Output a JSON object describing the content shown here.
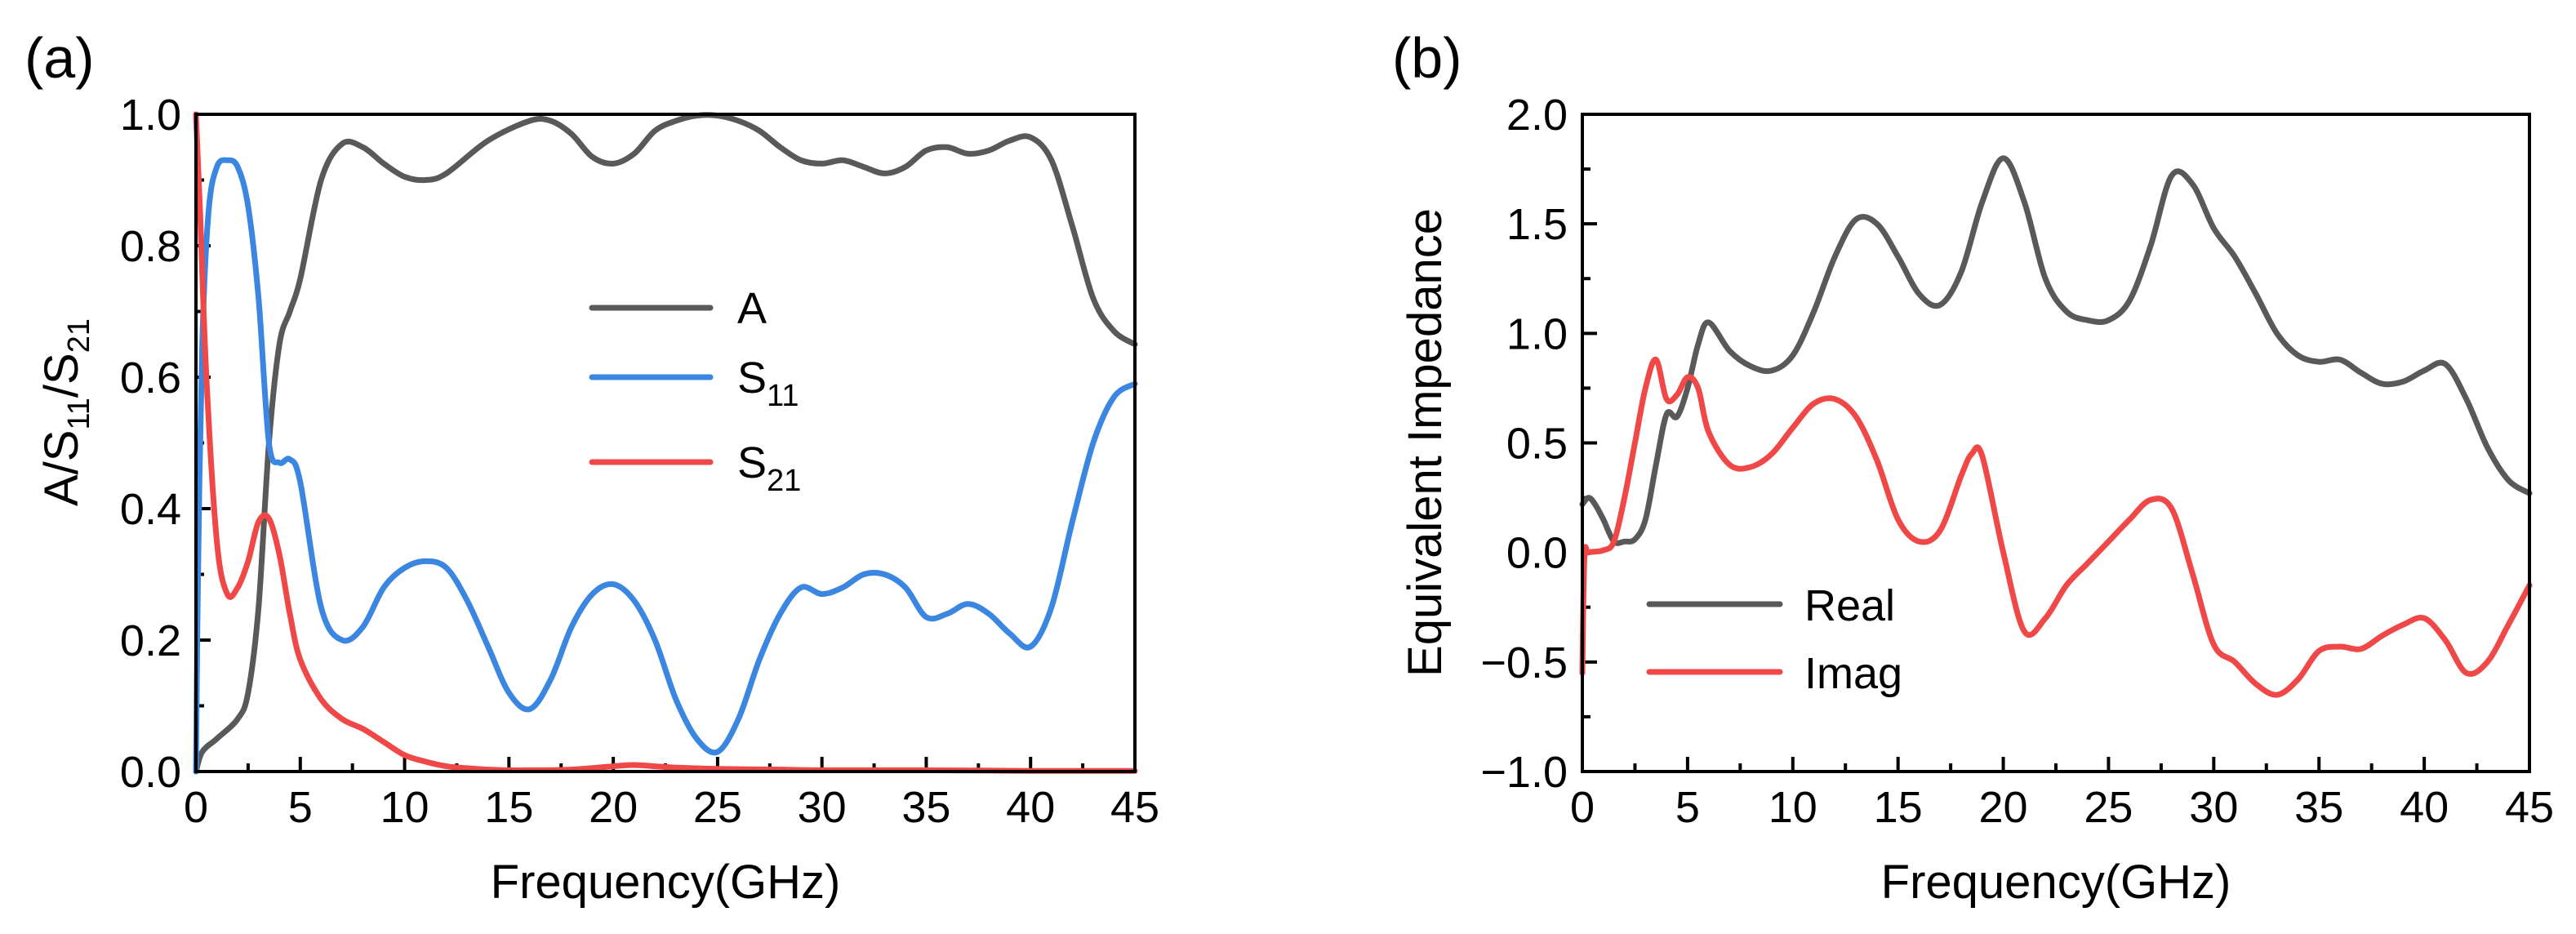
{
  "chart_data": [
    {
      "type": "line",
      "panel_label": "(a)",
      "xlabel": "Frequency(GHz)",
      "ylabel": "A/S11/S21",
      "xlim": [
        0,
        45
      ],
      "ylim": [
        0,
        1.0
      ],
      "xticks": [
        0,
        5,
        10,
        15,
        20,
        25,
        30,
        35,
        40,
        45
      ],
      "yticks": [
        0.0,
        0.2,
        0.4,
        0.6,
        0.8,
        1.0
      ],
      "x_tick_labels": [
        "0",
        "5",
        "10",
        "15",
        "20",
        "25",
        "30",
        "35",
        "40",
        "45"
      ],
      "y_tick_labels": [
        "0.0",
        "0.2",
        "0.4",
        "0.6",
        "0.8",
        "1.0"
      ],
      "legend_position": "center",
      "grid": false,
      "series": [
        {
          "name": "A",
          "legend_main": "A",
          "legend_sub": "",
          "color": "#595959",
          "x": [
            0,
            0.3,
            1,
            2,
            2.5,
            3,
            3.5,
            4,
            4.5,
            5,
            6,
            7,
            8,
            9,
            10,
            11,
            12,
            14,
            16,
            17,
            18,
            19,
            20,
            21,
            22,
            23,
            24,
            25,
            26,
            27,
            28,
            29,
            30,
            31,
            32,
            33,
            34,
            35,
            36,
            37,
            38,
            39,
            40,
            41,
            42,
            43,
            44,
            45
          ],
          "y": [
            0,
            0.03,
            0.05,
            0.08,
            0.12,
            0.25,
            0.5,
            0.65,
            0.7,
            0.75,
            0.9,
            0.955,
            0.95,
            0.925,
            0.905,
            0.9,
            0.91,
            0.96,
            0.99,
            0.99,
            0.97,
            0.935,
            0.925,
            0.94,
            0.975,
            0.99,
            0.998,
            0.998,
            0.99,
            0.975,
            0.95,
            0.93,
            0.925,
            0.93,
            0.92,
            0.91,
            0.92,
            0.945,
            0.95,
            0.94,
            0.945,
            0.96,
            0.965,
            0.93,
            0.83,
            0.72,
            0.67,
            0.65
          ]
        },
        {
          "name": "S11",
          "legend_main": "S",
          "legend_sub": "11",
          "color": "#3a86e0",
          "x": [
            0,
            0.1,
            0.3,
            0.6,
            1,
            1.5,
            2,
            2.5,
            3,
            3.5,
            4,
            4.5,
            5,
            6,
            7,
            8,
            9,
            10,
            11,
            12,
            13,
            14,
            15,
            16,
            17,
            18,
            19,
            20,
            21,
            22,
            23,
            24,
            25,
            26,
            27,
            28,
            29,
            30,
            31,
            32,
            33,
            34,
            35,
            36,
            37,
            38,
            39,
            40,
            41,
            42,
            43,
            44,
            45
          ],
          "y": [
            0,
            0.3,
            0.65,
            0.85,
            0.92,
            0.93,
            0.92,
            0.86,
            0.72,
            0.5,
            0.47,
            0.475,
            0.44,
            0.25,
            0.2,
            0.22,
            0.28,
            0.31,
            0.32,
            0.31,
            0.26,
            0.19,
            0.12,
            0.095,
            0.14,
            0.22,
            0.27,
            0.285,
            0.26,
            0.2,
            0.11,
            0.05,
            0.03,
            0.08,
            0.17,
            0.24,
            0.28,
            0.27,
            0.28,
            0.3,
            0.3,
            0.28,
            0.235,
            0.24,
            0.255,
            0.24,
            0.21,
            0.19,
            0.25,
            0.38,
            0.5,
            0.57,
            0.59
          ]
        },
        {
          "name": "S21",
          "legend_main": "S",
          "legend_sub": "21",
          "color": "#f04747",
          "x": [
            0,
            0.2,
            0.5,
            1,
            1.5,
            2,
            2.5,
            3,
            3.5,
            4,
            4.5,
            5,
            6,
            7,
            8,
            9,
            10,
            11,
            12,
            13,
            14,
            15,
            16,
            18,
            20,
            21,
            22,
            23,
            25,
            28,
            30,
            35,
            40,
            45
          ],
          "y": [
            1.0,
            0.85,
            0.6,
            0.35,
            0.27,
            0.28,
            0.32,
            0.38,
            0.385,
            0.33,
            0.24,
            0.17,
            0.11,
            0.08,
            0.065,
            0.045,
            0.025,
            0.015,
            0.008,
            0.005,
            0.003,
            0.002,
            0.002,
            0.003,
            0.008,
            0.01,
            0.008,
            0.006,
            0.004,
            0.003,
            0.002,
            0.002,
            0.001,
            0.001
          ]
        }
      ]
    },
    {
      "type": "line",
      "panel_label": "(b)",
      "xlabel": "Frequency(GHz)",
      "ylabel": "Equivalent Impedance",
      "xlim": [
        0,
        45
      ],
      "ylim": [
        -1.0,
        2.0
      ],
      "xticks": [
        0,
        5,
        10,
        15,
        20,
        25,
        30,
        35,
        40,
        45
      ],
      "yticks": [
        -1.0,
        -0.5,
        0.0,
        0.5,
        1.0,
        1.5,
        2.0
      ],
      "x_tick_labels": [
        "0",
        "5",
        "10",
        "15",
        "20",
        "25",
        "30",
        "35",
        "40",
        "45"
      ],
      "y_tick_labels": [
        "−1.0",
        "−0.5",
        "0.0",
        "0.5",
        "1.0",
        "1.5",
        "2.0"
      ],
      "legend_position": "bottom-left",
      "grid": false,
      "series": [
        {
          "name": "Real",
          "color": "#595959",
          "x": [
            0,
            0.3,
            0.6,
            1,
            1.5,
            2,
            2.5,
            3,
            3.5,
            4,
            4.5,
            5,
            5.5,
            6,
            7,
            8,
            9,
            10,
            11,
            12,
            13,
            14,
            15,
            16,
            17,
            18,
            19,
            20,
            21,
            22,
            23,
            24,
            25,
            26,
            27,
            28,
            29,
            30,
            31,
            32,
            33,
            34,
            35,
            36,
            37,
            38,
            39,
            40,
            41,
            42,
            43,
            44,
            45
          ],
          "y": [
            0.22,
            0.25,
            0.22,
            0.15,
            0.05,
            0.05,
            0.06,
            0.15,
            0.4,
            0.63,
            0.62,
            0.75,
            0.95,
            1.05,
            0.92,
            0.85,
            0.83,
            0.9,
            1.1,
            1.35,
            1.52,
            1.5,
            1.35,
            1.18,
            1.13,
            1.28,
            1.6,
            1.8,
            1.6,
            1.25,
            1.1,
            1.06,
            1.06,
            1.15,
            1.4,
            1.72,
            1.68,
            1.48,
            1.35,
            1.18,
            1.0,
            0.9,
            0.87,
            0.88,
            0.82,
            0.77,
            0.78,
            0.83,
            0.86,
            0.7,
            0.48,
            0.33,
            0.27
          ]
        },
        {
          "name": "Imag",
          "color": "#f04747",
          "x": [
            0,
            0.1,
            0.3,
            1,
            1.5,
            2,
            2.5,
            3,
            3.5,
            4,
            4.5,
            5,
            5.5,
            6,
            7,
            8,
            9,
            10,
            11,
            12,
            13,
            14,
            15,
            16,
            17,
            18,
            18.5,
            19,
            20,
            21,
            22,
            23,
            24,
            25,
            26,
            27,
            28,
            29,
            30,
            31,
            32,
            33,
            34,
            35,
            36,
            37,
            38,
            39,
            40,
            41,
            42,
            43,
            44,
            45
          ],
          "y": [
            -0.55,
            -0.02,
            0.0,
            0.01,
            0.05,
            0.25,
            0.5,
            0.75,
            0.88,
            0.7,
            0.72,
            0.8,
            0.75,
            0.55,
            0.4,
            0.39,
            0.45,
            0.57,
            0.68,
            0.7,
            0.62,
            0.42,
            0.15,
            0.05,
            0.1,
            0.35,
            0.45,
            0.44,
            0.0,
            -0.36,
            -0.3,
            -0.15,
            -0.05,
            0.05,
            0.15,
            0.24,
            0.2,
            -0.1,
            -0.42,
            -0.5,
            -0.6,
            -0.65,
            -0.58,
            -0.45,
            -0.43,
            -0.44,
            -0.38,
            -0.33,
            -0.3,
            -0.4,
            -0.55,
            -0.5,
            -0.33,
            -0.15
          ]
        }
      ]
    }
  ]
}
